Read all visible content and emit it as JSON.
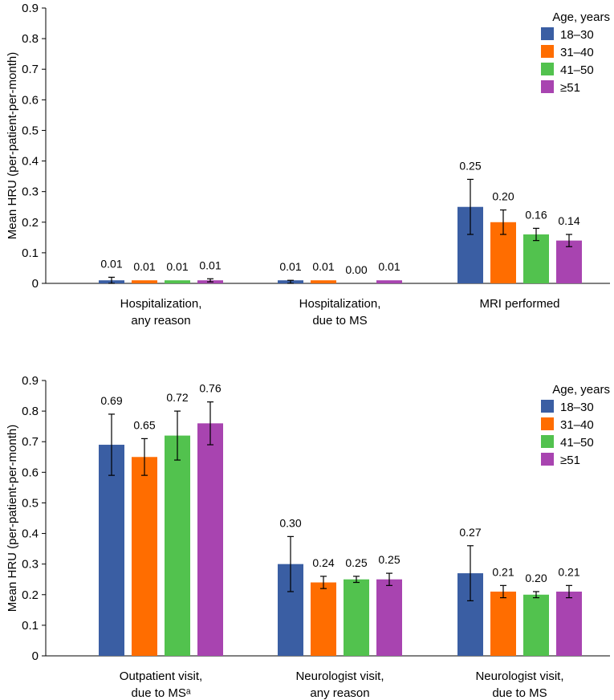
{
  "colors": {
    "18–30": "#3a5ea3",
    "31–40": "#ff6d00",
    "41–50": "#52c24e",
    "≥51": "#a844b0"
  },
  "chart_data": [
    {
      "type": "bar",
      "ylabel": "Mean HRU (per-patient-per-month)",
      "ylim": [
        0,
        0.9
      ],
      "yticks": [
        "0",
        "0.1",
        "0.2",
        "0.3",
        "0.4",
        "0.5",
        "0.6",
        "0.7",
        "0.8",
        "0.9"
      ],
      "legend_title": "Age, years",
      "legend_position": "top-right",
      "categories": [
        [
          "Hospitalization,",
          "any reason"
        ],
        [
          "Hospitalization,",
          "due to MS"
        ],
        [
          "MRI performed"
        ]
      ],
      "series": [
        {
          "name": "18–30",
          "values": [
            0.01,
            0.01,
            0.25
          ],
          "labels": [
            "0.01",
            "0.01",
            "0.25"
          ],
          "err_low": [
            0.0,
            0.0,
            0.16
          ],
          "err_high": [
            0.02,
            0.01,
            0.34
          ]
        },
        {
          "name": "31–40",
          "values": [
            0.01,
            0.01,
            0.2
          ],
          "labels": [
            "0.01",
            "0.01",
            "0.20"
          ],
          "err_low": [
            0.01,
            0.01,
            0.16
          ],
          "err_high": [
            0.01,
            0.01,
            0.24
          ]
        },
        {
          "name": "41–50",
          "values": [
            0.01,
            0.0,
            0.16
          ],
          "labels": [
            "0.01",
            "0.00",
            "0.16"
          ],
          "err_low": [
            0.01,
            0.0,
            0.14
          ],
          "err_high": [
            0.01,
            0.0,
            0.18
          ]
        },
        {
          "name": "≥51",
          "values": [
            0.01,
            0.01,
            0.14
          ],
          "labels": [
            "0.01",
            "0.01",
            "0.14"
          ],
          "err_low": [
            0.005,
            0.01,
            0.12
          ],
          "err_high": [
            0.015,
            0.01,
            0.16
          ]
        }
      ]
    },
    {
      "type": "bar",
      "ylabel": "Mean HRU (per-patient-per-month)",
      "ylim": [
        0,
        0.9
      ],
      "yticks": [
        "0",
        "0.1",
        "0.2",
        "0.3",
        "0.4",
        "0.5",
        "0.6",
        "0.7",
        "0.8",
        "0.9"
      ],
      "legend_title": "Age, years",
      "legend_position": "top-right",
      "categories": [
        [
          "Outpatient visit,",
          "due to MSᵃ"
        ],
        [
          "Neurologist visit,",
          "any reason"
        ],
        [
          "Neurologist visit,",
          "due to MS"
        ]
      ],
      "series": [
        {
          "name": "18–30",
          "values": [
            0.69,
            0.3,
            0.27
          ],
          "labels": [
            "0.69",
            "0.30",
            "0.27"
          ],
          "err_low": [
            0.59,
            0.21,
            0.18
          ],
          "err_high": [
            0.79,
            0.39,
            0.36
          ]
        },
        {
          "name": "31–40",
          "values": [
            0.65,
            0.24,
            0.21
          ],
          "labels": [
            "0.65",
            "0.24",
            "0.21"
          ],
          "err_low": [
            0.59,
            0.22,
            0.19
          ],
          "err_high": [
            0.71,
            0.26,
            0.23
          ]
        },
        {
          "name": "41–50",
          "values": [
            0.72,
            0.25,
            0.2
          ],
          "labels": [
            "0.72",
            "0.25",
            "0.20"
          ],
          "err_low": [
            0.64,
            0.24,
            0.19
          ],
          "err_high": [
            0.8,
            0.26,
            0.21
          ]
        },
        {
          "name": "≥51",
          "values": [
            0.76,
            0.25,
            0.21
          ],
          "labels": [
            "0.76",
            "0.25",
            "0.21"
          ],
          "err_low": [
            0.69,
            0.23,
            0.19
          ],
          "err_high": [
            0.83,
            0.27,
            0.23
          ]
        }
      ]
    }
  ]
}
